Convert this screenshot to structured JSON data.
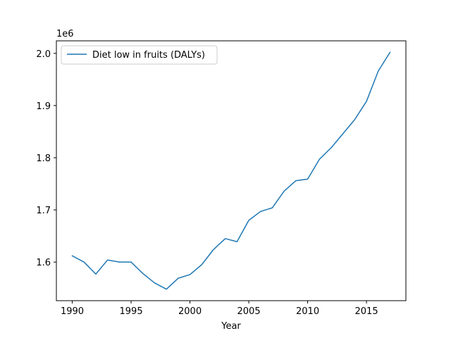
{
  "chart_data": {
    "type": "line",
    "title": "",
    "xlabel": "Year",
    "ylabel": "",
    "y_offset_label": "1e6",
    "xlim": [
      1988.65,
      2018.35
    ],
    "ylim": [
      1526000,
      2024000
    ],
    "x_ticks": [
      1990,
      1995,
      2000,
      2005,
      2010,
      2015
    ],
    "y_ticks": [
      1600000,
      1700000,
      1800000,
      1900000,
      2000000
    ],
    "y_tick_labels": [
      "1.6",
      "1.7",
      "1.8",
      "1.9",
      "2.0"
    ],
    "grid": false,
    "legend_position": "top-left",
    "series": [
      {
        "name": "Diet low in fruits (DALYs)",
        "color": "#1f77b4",
        "x": [
          1990,
          1991,
          1992,
          1993,
          1994,
          1995,
          1996,
          1997,
          1998,
          1999,
          2000,
          2001,
          2002,
          2003,
          2004,
          2005,
          2006,
          2007,
          2008,
          2009,
          2010,
          2011,
          2012,
          2013,
          2014,
          2015,
          2016,
          2017
        ],
        "y": [
          1612000,
          1600000,
          1577000,
          1604000,
          1600000,
          1600000,
          1578000,
          1560000,
          1548000,
          1569000,
          1576000,
          1595000,
          1624000,
          1645000,
          1639000,
          1680000,
          1697000,
          1704000,
          1736000,
          1756000,
          1759000,
          1797000,
          1819000,
          1846000,
          1873000,
          1908000,
          1966000,
          2002000
        ]
      }
    ]
  }
}
